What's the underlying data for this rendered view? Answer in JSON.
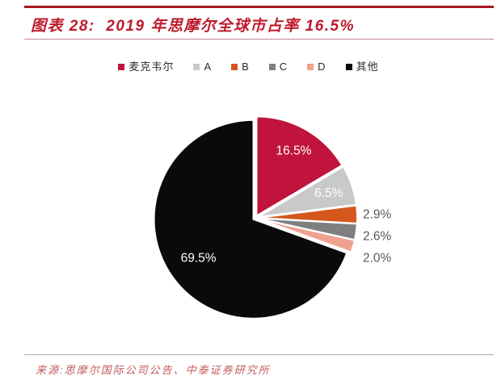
{
  "header": {
    "title": "图表 28:  2019 年思摩尔全球市占率 16.5%"
  },
  "footer": {
    "source": "来源:思摩尔国际公司公告、中泰证券研究所"
  },
  "colors": {
    "accent_red": "#A6191E",
    "title_red": "#BE1A2B",
    "thin_rule_red": "#C9898E",
    "divider_gray": "#ABABAB",
    "source_red": "#C25B5B",
    "legend_text": "#2B2B2B",
    "inside_label": "#FFFFFF",
    "outside_label": "#595959"
  },
  "chart_data": {
    "type": "pie",
    "title": "2019 年思摩尔全球市占率 16.5%",
    "unit": "%",
    "start_angle_deg": 0,
    "direction": "clockwise",
    "legend_position": "top",
    "grid": false,
    "series": [
      {
        "name": "麦克韦尔",
        "value": 16.5,
        "label": "16.5%",
        "color": "#C0143C",
        "label_inside": true
      },
      {
        "name": "A",
        "value": 6.5,
        "label": "6.5%",
        "color": "#C9C9C9",
        "label_inside": true
      },
      {
        "name": "B",
        "value": 2.9,
        "label": "2.9%",
        "color": "#D4571E",
        "label_inside": false
      },
      {
        "name": "C",
        "value": 2.6,
        "label": "2.6%",
        "color": "#7F7F7F",
        "label_inside": false
      },
      {
        "name": "D",
        "value": 2.0,
        "label": "2.0%",
        "color": "#EFA28F",
        "label_inside": false
      },
      {
        "name": "其他",
        "value": 69.5,
        "label": "69.5%",
        "color": "#0A0A0A",
        "label_inside": true
      }
    ]
  }
}
